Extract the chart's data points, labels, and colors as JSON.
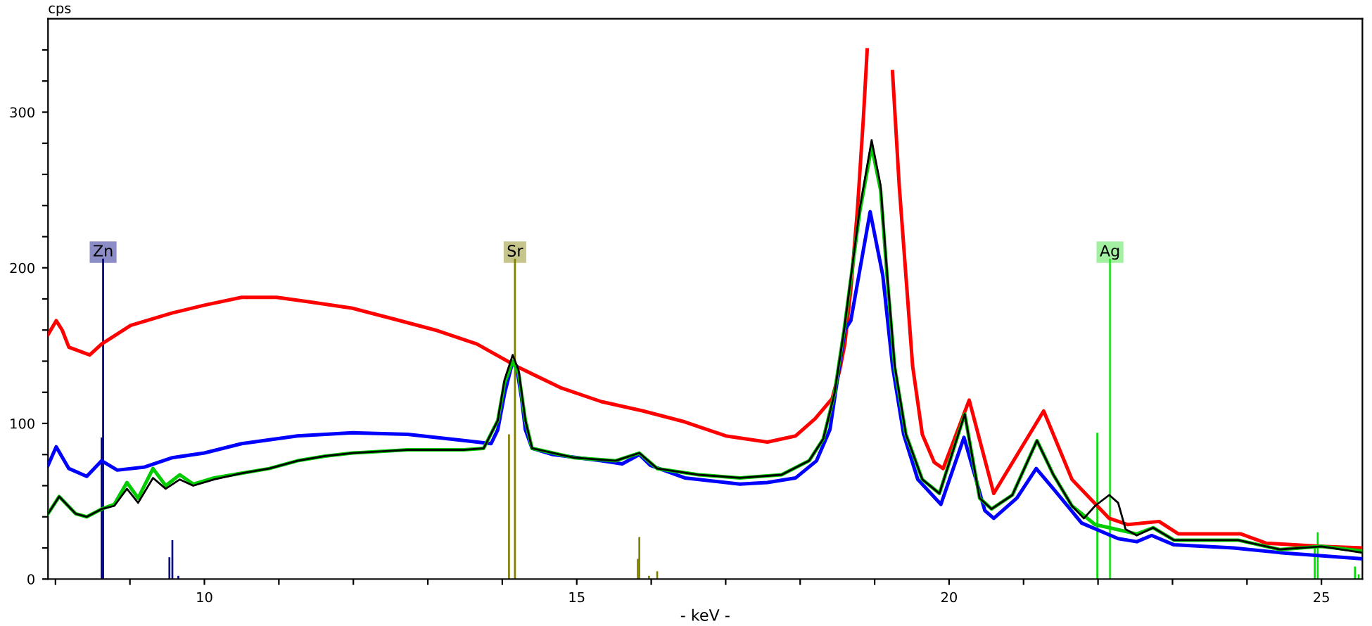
{
  "chart_data": {
    "type": "line",
    "xlabel": "- keV -",
    "ylabel": "cps",
    "xlim": [
      7.9,
      25.55
    ],
    "ylim": [
      0,
      360
    ],
    "xticks": [
      {
        "value": 8,
        "label": null
      },
      {
        "value": 9,
        "label": null
      },
      10,
      {
        "value": 11,
        "label": null
      },
      {
        "value": 12,
        "label": null
      },
      {
        "value": 13,
        "label": null
      },
      {
        "value": 14,
        "label": null
      },
      15,
      {
        "value": 16,
        "label": null
      },
      {
        "value": 17,
        "label": null
      },
      {
        "value": 18,
        "label": null
      },
      {
        "value": 19,
        "label": null
      },
      20,
      {
        "value": 21,
        "label": null
      },
      {
        "value": 22,
        "label": null
      },
      {
        "value": 23,
        "label": null
      },
      {
        "value": 24,
        "label": null
      },
      25
    ],
    "yticks": [
      0,
      {
        "value": 20,
        "label": null
      },
      {
        "value": 40,
        "label": null
      },
      {
        "value": 60,
        "label": null
      },
      {
        "value": 80,
        "label": null
      },
      100,
      {
        "value": 120,
        "label": null
      },
      {
        "value": 140,
        "label": null
      },
      {
        "value": 160,
        "label": null
      },
      {
        "value": 180,
        "label": null
      },
      200,
      {
        "value": 220,
        "label": null
      },
      {
        "value": 240,
        "label": null
      },
      {
        "value": 260,
        "label": null
      },
      {
        "value": 280,
        "label": null
      },
      300,
      {
        "value": 320,
        "label": null
      },
      {
        "value": 340,
        "label": null
      }
    ],
    "grid": false,
    "marker": "none",
    "line_style": "solid",
    "ref_lines": [
      {
        "axis": "x",
        "value": 8.64,
        "label": "Zn",
        "color": "#000080"
      },
      {
        "axis": "x",
        "value": 14.17,
        "label": "Sr",
        "color": "#808000"
      },
      {
        "axis": "x",
        "value": 22.16,
        "label": "Ag",
        "color": "#33dd33"
      }
    ],
    "series": [
      {
        "type": "bar",
        "color": "#000080",
        "x": [
          8.62,
          9.53,
          9.57,
          9.65
        ],
        "values": [
          91,
          14,
          25,
          2
        ]
      },
      {
        "type": "bar",
        "color": "#808000",
        "x": [
          14.09,
          15.82,
          15.84,
          15.97,
          16.08
        ],
        "values": [
          93,
          13,
          27,
          2,
          5
        ]
      },
      {
        "type": "bar",
        "color": "#00dd00",
        "x": [
          21.99,
          24.91,
          24.95,
          25.45,
          25.5
        ],
        "values": [
          94,
          20,
          30,
          8,
          3
        ]
      },
      {
        "color": "#ff0000",
        "x": [
          7.9,
          8.01,
          8.09,
          8.18,
          8.46,
          8.62,
          9.01,
          9.57,
          10.0,
          10.5,
          10.97,
          11.43,
          11.99,
          12.55,
          13.1,
          13.66,
          14.22,
          14.78,
          15.33,
          15.89,
          16.45,
          17.0,
          17.56,
          17.94,
          18.2,
          18.43,
          18.53,
          18.6,
          18.68,
          18.77,
          18.85,
          18.9,
          19.05,
          19.24,
          19.33,
          19.42,
          19.51,
          19.64,
          19.8,
          19.92,
          20.27,
          20.6,
          21.27,
          21.65,
          22.15,
          22.4,
          22.82,
          23.08,
          23.92,
          24.26,
          25.0,
          25.54
        ],
        "values": [
          157,
          166,
          160,
          149,
          144,
          151,
          163,
          171,
          176,
          181,
          181,
          178,
          174,
          167,
          160,
          151,
          136,
          123,
          114,
          108,
          101,
          92,
          88,
          92,
          103,
          116,
          134,
          151,
          186,
          238,
          297,
          340,
          null,
          326,
          253,
          195,
          137,
          93,
          75,
          71,
          115,
          55,
          108,
          64,
          39,
          35,
          37,
          29,
          29,
          23,
          21,
          20
        ]
      },
      {
        "color": "#0000ff",
        "x": [
          7.9,
          8.01,
          8.18,
          8.42,
          8.62,
          8.83,
          9.2,
          9.57,
          10.0,
          10.5,
          11.25,
          11.99,
          12.73,
          13.48,
          13.85,
          13.94,
          14.03,
          14.13,
          14.19,
          14.26,
          14.31,
          14.4,
          14.68,
          15.33,
          15.61,
          15.84,
          15.99,
          16.45,
          17.19,
          17.56,
          17.94,
          18.22,
          18.4,
          18.49,
          18.6,
          18.68,
          18.94,
          19.11,
          19.24,
          19.39,
          19.58,
          19.89,
          20.2,
          20.48,
          20.6,
          20.91,
          21.17,
          21.4,
          21.78,
          22.27,
          22.52,
          22.72,
          23.02,
          23.82,
          24.44,
          25.54
        ],
        "values": [
          73,
          85,
          71,
          66,
          76,
          70,
          72,
          78,
          81,
          87,
          92,
          94,
          93,
          89,
          87,
          96,
          119,
          138,
          137,
          116,
          96,
          84,
          80,
          76,
          74,
          80,
          73,
          65,
          61,
          62,
          65,
          76,
          96,
          125,
          160,
          166,
          236,
          195,
          137,
          93,
          64,
          48,
          91,
          44,
          39,
          52,
          71,
          58,
          36,
          26,
          24,
          28,
          22,
          20,
          17,
          13
        ]
      },
      {
        "color": "#00cc00",
        "x": [
          7.9,
          8.05,
          8.27,
          8.42,
          8.62,
          8.79,
          8.96,
          9.11,
          9.31,
          9.48,
          9.67,
          9.85,
          10.13,
          10.5,
          10.87,
          11.25,
          11.62,
          11.99,
          12.73,
          13.48,
          13.75,
          13.94,
          14.03,
          14.14,
          14.22,
          14.31,
          14.4,
          14.96,
          15.52,
          15.84,
          16.08,
          16.64,
          17.19,
          17.75,
          18.12,
          18.31,
          18.46,
          18.59,
          18.8,
          18.96,
          19.08,
          19.17,
          19.27,
          19.42,
          19.64,
          19.87,
          20.21,
          20.41,
          20.57,
          20.85,
          21.18,
          21.4,
          21.65,
          21.96,
          22.15,
          22.52,
          22.74,
          23.02,
          23.88,
          24.44,
          25.0,
          25.54
        ],
        "values": [
          42,
          53,
          42,
          40,
          45,
          48,
          62,
          52,
          71,
          60,
          67,
          61,
          65,
          68,
          71,
          76,
          79,
          81,
          83,
          83,
          84,
          102,
          126,
          140,
          132,
          102,
          84,
          78,
          76,
          81,
          71,
          67,
          65,
          67,
          76,
          90,
          119,
          160,
          236,
          278,
          250,
          193,
          136,
          93,
          64,
          55,
          106,
          52,
          45,
          54,
          89,
          67,
          47,
          35,
          33,
          29,
          33,
          25,
          25,
          19,
          21,
          18
        ]
      },
      {
        "color": "#000000",
        "x": [
          7.9,
          8.05,
          8.27,
          8.42,
          8.62,
          8.79,
          8.96,
          9.11,
          9.31,
          9.48,
          9.67,
          9.85,
          10.13,
          10.5,
          10.87,
          11.25,
          11.62,
          11.99,
          12.73,
          13.48,
          13.75,
          13.94,
          14.03,
          14.14,
          14.22,
          14.31,
          14.4,
          14.96,
          15.52,
          15.84,
          16.08,
          16.64,
          17.19,
          17.75,
          18.12,
          18.31,
          18.46,
          18.59,
          18.8,
          18.96,
          19.08,
          19.17,
          19.27,
          19.42,
          19.64,
          19.87,
          20.21,
          20.41,
          20.57,
          20.85,
          21.18,
          21.4,
          21.65,
          21.81,
          21.96,
          22.15,
          22.27,
          22.37,
          22.52,
          22.74,
          23.02,
          23.88,
          24.44,
          25.0,
          25.54
        ],
        "values": [
          42,
          53,
          42,
          40,
          45,
          47,
          58,
          49,
          65,
          58,
          64,
          60,
          64,
          68,
          71,
          76,
          79,
          81,
          83,
          83,
          84,
          102,
          128,
          144,
          134,
          102,
          84,
          78,
          76,
          81,
          71,
          67,
          65,
          67,
          76,
          90,
          119,
          160,
          238,
          282,
          253,
          195,
          137,
          93,
          64,
          55,
          106,
          52,
          45,
          54,
          89,
          67,
          47,
          39,
          47,
          54,
          49,
          32,
          28,
          33,
          25,
          25,
          19,
          21,
          17
        ]
      }
    ]
  }
}
